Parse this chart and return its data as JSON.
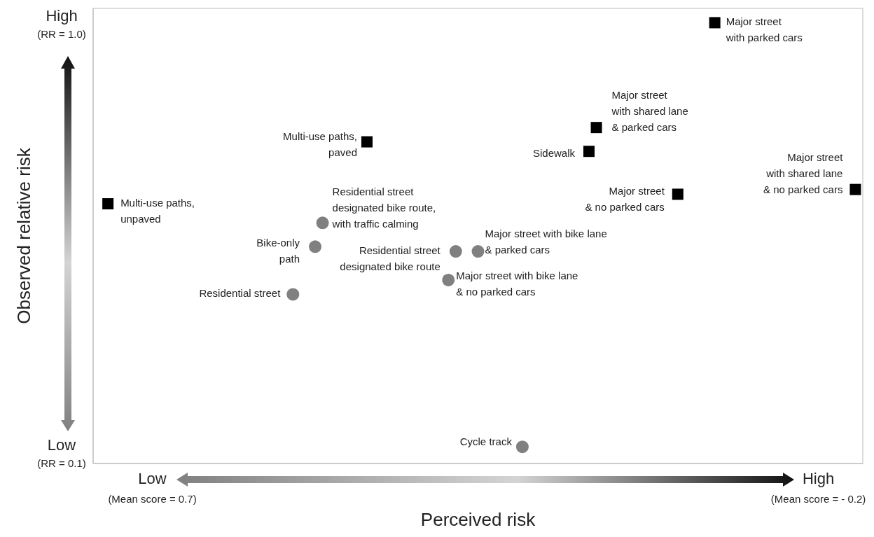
{
  "chart_data": {
    "type": "scatter",
    "xlabel": "Perceived risk",
    "ylabel": "Observed relative risk",
    "xlim": [
      0.78,
      -0.26
    ],
    "xticks": [
      {
        "value": 0.7,
        "label": "Low\n(Mean score = 0.7)"
      },
      {
        "value": -0.2,
        "label": "High\n(Mean score = - 0.2)"
      }
    ],
    "ylim": [
      0.075,
      1.03
    ],
    "yticks": [
      {
        "value": 1.0,
        "label": "High\n(RR = 1.0)"
      },
      {
        "value": 0.1,
        "label": "Low\n(RR = 0.1)"
      }
    ],
    "grid": false,
    "legend": false,
    "series": [
      {
        "color": "#000000",
        "marker": "square",
        "x": [
          0.76,
          0.41
        ],
        "values": [
          0.62,
          0.75
        ]
      },
      {
        "color": "#808080",
        "marker": "circle",
        "x": [
          0.47,
          0.48,
          0.51,
          0.29,
          0.26,
          0.3
        ],
        "values": [
          0.58,
          0.53,
          0.43,
          0.52,
          0.52,
          0.46
        ]
      },
      {
        "color": "#808080",
        "marker": "circle",
        "x": [
          0.2
        ],
        "values": [
          0.11
        ]
      },
      {
        "color": "#000000",
        "marker": "square",
        "x": [
          0.11,
          0.1,
          -0.01,
          -0.06,
          -0.25
        ],
        "values": [
          0.73,
          0.78,
          0.64,
          1.0,
          0.65
        ]
      }
    ],
    "annotations": [
      {
        "text": "Multi-use paths,\nunpaved",
        "x": 0.76,
        "y": 0.62
      },
      {
        "text": "Multi-use paths,\npaved",
        "x": 0.41,
        "y": 0.75
      },
      {
        "text": "Residential street\ndesignated bike route,\nwith traffic calming",
        "x": 0.47,
        "y": 0.58
      },
      {
        "text": "Bike-only\npath",
        "x": 0.48,
        "y": 0.53
      },
      {
        "text": "Residential street",
        "x": 0.51,
        "y": 0.43
      },
      {
        "text": "Residential street\ndesignated bike route",
        "x": 0.29,
        "y": 0.52
      },
      {
        "text": "Major street with bike lane\n& parked cars",
        "x": 0.26,
        "y": 0.52
      },
      {
        "text": "Major street with bike lane\n& no parked cars",
        "x": 0.3,
        "y": 0.46
      },
      {
        "text": "Cycle track",
        "x": 0.2,
        "y": 0.11
      },
      {
        "text": "Sidewalk",
        "x": 0.11,
        "y": 0.73
      },
      {
        "text": "Major street\nwith shared lane\n& parked cars",
        "x": 0.1,
        "y": 0.78
      },
      {
        "text": "Major street\n& no parked cars",
        "x": -0.01,
        "y": 0.64
      },
      {
        "text": "Major street\nwith parked cars",
        "x": -0.06,
        "y": 1.0
      },
      {
        "text": "Major street\nwith shared lane\n& no parked cars",
        "x": -0.25,
        "y": 0.65
      }
    ]
  }
}
